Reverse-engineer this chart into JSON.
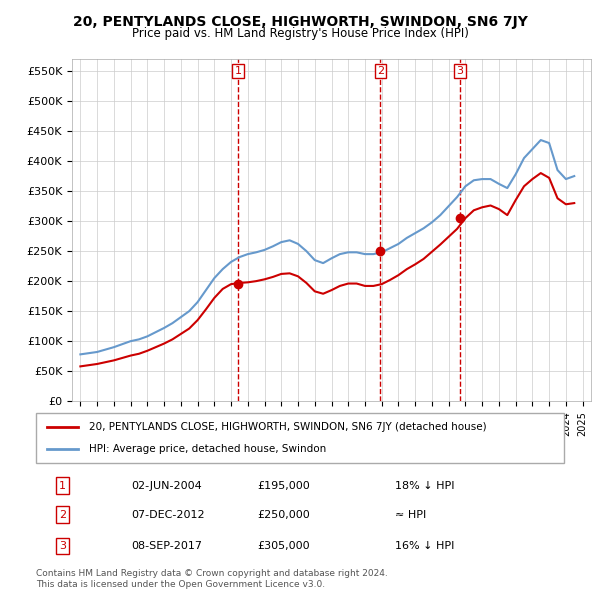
{
  "title": "20, PENTYLANDS CLOSE, HIGHWORTH, SWINDON, SN6 7JY",
  "subtitle": "Price paid vs. HM Land Registry's House Price Index (HPI)",
  "ylabel_ticks": [
    "£0",
    "£50K",
    "£100K",
    "£150K",
    "£200K",
    "£250K",
    "£300K",
    "£350K",
    "£400K",
    "£450K",
    "£500K",
    "£550K"
  ],
  "ytick_values": [
    0,
    50000,
    100000,
    150000,
    200000,
    250000,
    300000,
    350000,
    400000,
    450000,
    500000,
    550000
  ],
  "hpi_color": "#6699cc",
  "price_color": "#cc0000",
  "sale_color": "#cc0000",
  "grid_color": "#cccccc",
  "dashed_line_color": "#cc0000",
  "background_color": "#ffffff",
  "legend_label_price": "20, PENTYLANDS CLOSE, HIGHWORTH, SWINDON, SN6 7JY (detached house)",
  "legend_label_hpi": "HPI: Average price, detached house, Swindon",
  "transactions": [
    {
      "num": 1,
      "date": "02-JUN-2004",
      "price": 195000,
      "note": "18% ↓ HPI",
      "x_year": 2004.42
    },
    {
      "num": 2,
      "date": "07-DEC-2012",
      "price": 250000,
      "note": "≈ HPI",
      "x_year": 2012.92
    },
    {
      "num": 3,
      "date": "08-SEP-2017",
      "price": 305000,
      "note": "16% ↓ HPI",
      "x_year": 2017.67
    }
  ],
  "footer": "Contains HM Land Registry data © Crown copyright and database right 2024.\nThis data is licensed under the Open Government Licence v3.0.",
  "hpi_data": {
    "years": [
      1995.0,
      1995.5,
      1996.0,
      1996.5,
      1997.0,
      1997.5,
      1998.0,
      1998.5,
      1999.0,
      1999.5,
      2000.0,
      2000.5,
      2001.0,
      2001.5,
      2002.0,
      2002.5,
      2003.0,
      2003.5,
      2004.0,
      2004.5,
      2005.0,
      2005.5,
      2006.0,
      2006.5,
      2007.0,
      2007.5,
      2008.0,
      2008.5,
      2009.0,
      2009.5,
      2010.0,
      2010.5,
      2011.0,
      2011.5,
      2012.0,
      2012.5,
      2013.0,
      2013.5,
      2014.0,
      2014.5,
      2015.0,
      2015.5,
      2016.0,
      2016.5,
      2017.0,
      2017.5,
      2018.0,
      2018.5,
      2019.0,
      2019.5,
      2020.0,
      2020.5,
      2021.0,
      2021.5,
      2022.0,
      2022.5,
      2023.0,
      2023.5,
      2024.0,
      2024.5
    ],
    "values": [
      78000,
      80000,
      82000,
      86000,
      90000,
      95000,
      100000,
      103000,
      108000,
      115000,
      122000,
      130000,
      140000,
      150000,
      165000,
      185000,
      205000,
      220000,
      232000,
      240000,
      245000,
      248000,
      252000,
      258000,
      265000,
      268000,
      262000,
      250000,
      235000,
      230000,
      238000,
      245000,
      248000,
      248000,
      245000,
      245000,
      248000,
      255000,
      262000,
      272000,
      280000,
      288000,
      298000,
      310000,
      325000,
      340000,
      358000,
      368000,
      370000,
      370000,
      362000,
      355000,
      378000,
      405000,
      420000,
      435000,
      430000,
      385000,
      370000,
      375000
    ]
  },
  "price_data": {
    "years": [
      1995.0,
      1995.5,
      1996.0,
      1996.5,
      1997.0,
      1997.5,
      1998.0,
      1998.5,
      1999.0,
      1999.5,
      2000.0,
      2000.5,
      2001.0,
      2001.5,
      2002.0,
      2002.5,
      2003.0,
      2003.5,
      2004.0,
      2004.5,
      2005.0,
      2005.5,
      2006.0,
      2006.5,
      2007.0,
      2007.5,
      2008.0,
      2008.5,
      2009.0,
      2009.5,
      2010.0,
      2010.5,
      2011.0,
      2011.5,
      2012.0,
      2012.5,
      2013.0,
      2013.5,
      2014.0,
      2014.5,
      2015.0,
      2015.5,
      2016.0,
      2016.5,
      2017.0,
      2017.5,
      2018.0,
      2018.5,
      2019.0,
      2019.5,
      2020.0,
      2020.5,
      2021.0,
      2021.5,
      2022.0,
      2022.5,
      2023.0,
      2023.5,
      2024.0,
      2024.5
    ],
    "values": [
      58000,
      60000,
      62000,
      65000,
      68000,
      72000,
      76000,
      79000,
      84000,
      90000,
      96000,
      103000,
      112000,
      121000,
      135000,
      153000,
      172000,
      187000,
      195000,
      197000,
      198000,
      200000,
      203000,
      207000,
      212000,
      213000,
      208000,
      197000,
      183000,
      179000,
      185000,
      192000,
      196000,
      196000,
      192000,
      192000,
      195000,
      202000,
      210000,
      220000,
      228000,
      237000,
      249000,
      261000,
      274000,
      287000,
      305000,
      318000,
      323000,
      326000,
      320000,
      310000,
      335000,
      358000,
      370000,
      380000,
      372000,
      338000,
      328000,
      330000
    ]
  },
  "x_min": 1994.5,
  "x_max": 2025.5,
  "y_min": 0,
  "y_max": 570000
}
